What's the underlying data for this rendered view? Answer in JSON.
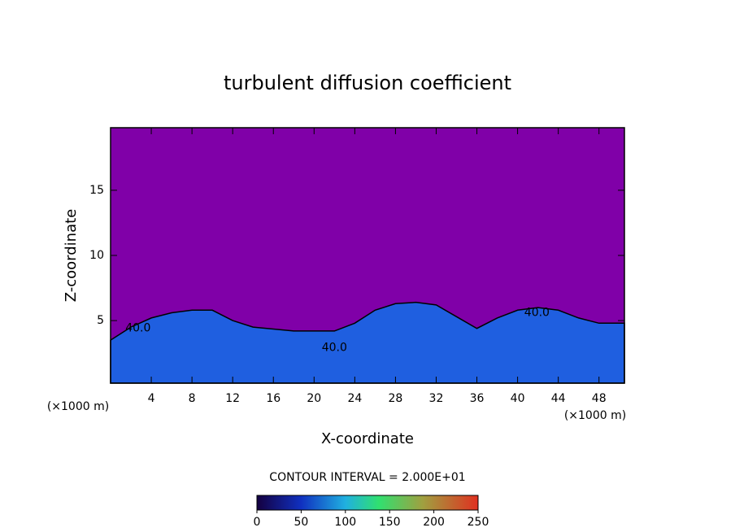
{
  "chart_data": {
    "type": "contour",
    "title": "turbulent diffusion coefficient",
    "x_label": "X-coordinate",
    "y_label": "Z-coordinate",
    "x_unit_left": "(×1000 m)",
    "x_unit_right": "(×1000 m)",
    "contour_interval": "CONTOUR INTERVAL = 2.000E+01",
    "background_color": "#8000a8",
    "layer_color": "#1f5fe0",
    "xlim": [
      0,
      50.5
    ],
    "ylim": [
      0.2,
      19.8
    ],
    "xticks": [
      4,
      8,
      12,
      16,
      20,
      24,
      28,
      32,
      36,
      40,
      44,
      48
    ],
    "yticks": [
      5,
      10,
      15
    ],
    "layer_top": {
      "x": [
        0,
        2,
        4,
        6,
        8,
        10,
        12,
        14,
        18,
        22,
        24,
        26,
        28,
        30,
        32,
        34,
        36,
        38,
        40,
        42,
        44,
        46,
        48,
        50.5
      ],
      "z": [
        3.5,
        4.5,
        5.2,
        5.6,
        5.8,
        5.8,
        5.0,
        4.5,
        4.2,
        4.2,
        4.8,
        5.8,
        6.3,
        6.4,
        6.2,
        5.3,
        4.4,
        5.2,
        5.8,
        6.0,
        5.8,
        5.2,
        4.8,
        4.8
      ]
    },
    "contour_labels": [
      {
        "x": 2.7,
        "z": 4.4,
        "label": "40.0"
      },
      {
        "x": 22,
        "z": 2.9,
        "label": "40.0"
      },
      {
        "x": 41.9,
        "z": 5.6,
        "label": "40.0"
      }
    ],
    "colorbar": {
      "range": [
        0,
        250
      ],
      "ticks": [
        0,
        50,
        100,
        150,
        200,
        250
      ]
    }
  }
}
